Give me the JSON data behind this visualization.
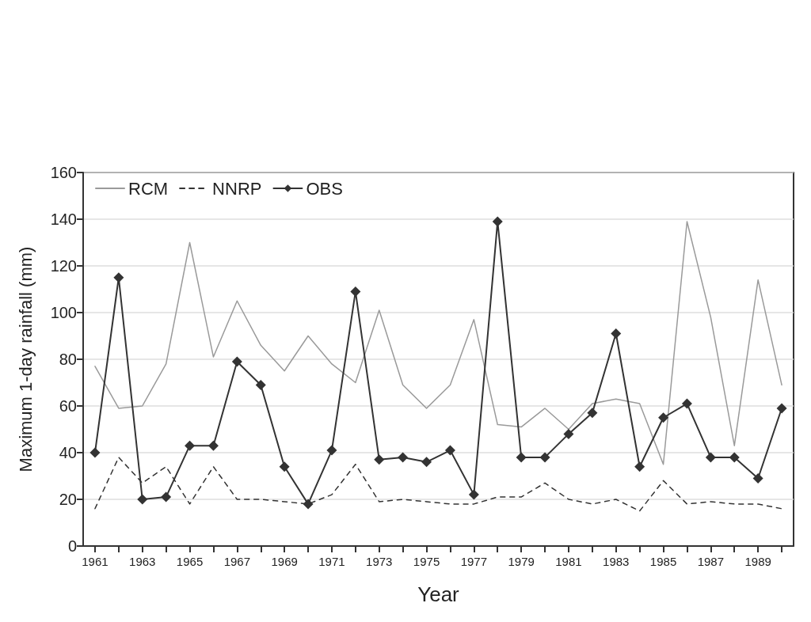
{
  "chart_data": {
    "type": "line",
    "xlabel": "Year",
    "ylabel": "Maximum 1-day rainfall (mm)",
    "categories": [
      "1961",
      null,
      "1963",
      null,
      "1965",
      null,
      "1967",
      null,
      "1969",
      null,
      "1971",
      null,
      "1973",
      null,
      "1975",
      null,
      "1977",
      null,
      "1979",
      null,
      "1981",
      null,
      "1983",
      null,
      "1985",
      null,
      "1987",
      null,
      "1989",
      null
    ],
    "series": [
      {
        "name": "RCM",
        "color": "#9a9a9a",
        "marker": "none",
        "line_style": "solid",
        "values": [
          77,
          59,
          60,
          78,
          130,
          81,
          105,
          86,
          75,
          90,
          78,
          70,
          101,
          69,
          59,
          69,
          97,
          52,
          51,
          59,
          50,
          61,
          63,
          61,
          35,
          139,
          98,
          43,
          114,
          69
        ]
      },
      {
        "name": "NNRP",
        "color": "#333333",
        "marker": "none",
        "line_style": "dashed",
        "values": [
          16,
          38,
          27,
          34,
          18,
          34,
          20,
          20,
          19,
          18,
          22,
          35,
          19,
          20,
          19,
          18,
          18,
          21,
          21,
          27,
          20,
          18,
          20,
          15,
          28,
          18,
          19,
          18,
          18,
          16
        ]
      },
      {
        "name": "OBS",
        "color": "#333333",
        "marker": "diamond",
        "line_style": "solid",
        "values": [
          40,
          115,
          20,
          21,
          43,
          43,
          79,
          69,
          34,
          18,
          41,
          109,
          37,
          38,
          36,
          41,
          22,
          139,
          38,
          38,
          48,
          57,
          91,
          34,
          55,
          61,
          38,
          38,
          29,
          59
        ]
      }
    ],
    "ylim": [
      0,
      160
    ],
    "yticks": [
      0,
      20,
      40,
      60,
      80,
      100,
      120,
      140,
      160
    ],
    "grid": "y",
    "legend": "top left"
  }
}
